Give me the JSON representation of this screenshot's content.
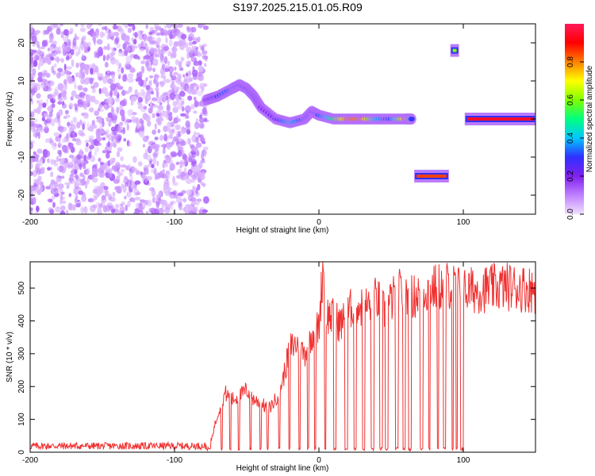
{
  "title": "S197.2025.215.01.05.R09",
  "colors": {
    "snr_line": "#f03030",
    "colormap": [
      "#f0e0ff",
      "#c080ff",
      "#8020f0",
      "#3030ff",
      "#00c8ff",
      "#00ff80",
      "#80ff00",
      "#ffff00",
      "#ff8000",
      "#ff0000",
      "#ff1a5a"
    ]
  },
  "chart_data": [
    {
      "type": "heatmap",
      "title": "",
      "xlabel": "Height of straight line (km)",
      "ylabel": "Frequency (Hz)",
      "xlim": [
        -200,
        150
      ],
      "ylim": [
        -25,
        25
      ],
      "xticks": [
        -200,
        -100,
        0,
        100
      ],
      "yticks": [
        20,
        10,
        0,
        -10,
        -20
      ],
      "x_tick_labels": [
        "-200",
        "-100",
        "0",
        "100"
      ],
      "y_tick_labels": [
        "20",
        "10",
        "0",
        "-10",
        "-20"
      ],
      "colorbar": {
        "label": "Normalized spectral amplitude",
        "range": [
          0,
          1
        ],
        "ticks": [
          0.0,
          0.2,
          0.4,
          0.6,
          0.8
        ],
        "tick_labels": [
          "0.0",
          "0.2",
          "0.4",
          "0.6",
          "0.8"
        ]
      },
      "regions": [
        {
          "name": "noise",
          "x_range": [
            -200,
            -78
          ],
          "freq_range": [
            -25,
            25
          ],
          "amplitude": 0.05
        },
        {
          "name": "drift",
          "x": [
            -78,
            -70,
            -60,
            -55,
            -50,
            -45,
            -40,
            -30,
            -20,
            -10,
            -5,
            0,
            10,
            20,
            30,
            40,
            50,
            60,
            65
          ],
          "freq": [
            5,
            6,
            8,
            9,
            8,
            6,
            3,
            0,
            -1,
            0,
            2,
            1,
            0,
            0,
            0,
            0,
            0,
            0,
            0
          ],
          "amplitude": [
            0.2,
            0.3,
            0.35,
            0.3,
            0.3,
            0.25,
            0.2,
            0.25,
            0.4,
            0.3,
            0.25,
            0.3,
            0.5,
            0.8,
            0.8,
            0.4,
            0.3,
            0.8,
            0.2
          ]
        },
        {
          "name": "low-tone",
          "x_range": [
            66,
            90
          ],
          "freq": -15,
          "amplitude": 0.85
        },
        {
          "name": "high-tone",
          "x_range": [
            91,
            97
          ],
          "freq": 18,
          "amplitude": 0.6
        },
        {
          "name": "steady-tone",
          "x_range": [
            101,
            150
          ],
          "freq": 0,
          "amplitude": 0.95
        }
      ]
    },
    {
      "type": "line",
      "title": "",
      "xlabel": "Height of straight line (km)",
      "ylabel": "SNR (10 * v/v)",
      "xlim": [
        -200,
        150
      ],
      "ylim": [
        0,
        580
      ],
      "xticks": [
        -200,
        -100,
        0,
        100
      ],
      "yticks": [
        0,
        100,
        200,
        300,
        400,
        500
      ],
      "x_tick_labels": [
        "-200",
        "-100",
        "0",
        "100"
      ],
      "y_tick_labels": [
        "0",
        "100",
        "200",
        "300",
        "400",
        "500"
      ],
      "series": [
        {
          "x": [
            -200,
            -150,
            -100,
            -80,
            -75,
            -70,
            -65,
            -60,
            -55,
            -50,
            -45,
            -40,
            -35,
            -30,
            -25,
            -20,
            -15,
            -10,
            -5,
            0,
            3,
            5,
            10,
            15,
            20,
            25,
            30,
            35,
            40,
            45,
            50,
            55,
            60,
            65,
            70,
            80,
            90,
            95,
            100,
            110,
            120,
            130,
            140,
            150
          ],
          "y": [
            10,
            10,
            10,
            12,
            30,
            120,
            180,
            160,
            170,
            190,
            160,
            150,
            130,
            160,
            220,
            320,
            330,
            300,
            360,
            380,
            580,
            420,
            410,
            390,
            420,
            460,
            440,
            450,
            470,
            430,
            460,
            490,
            480,
            470,
            490,
            500,
            510,
            500,
            490,
            495,
            500,
            505,
            500,
            495
          ]
        }
      ]
    }
  ]
}
